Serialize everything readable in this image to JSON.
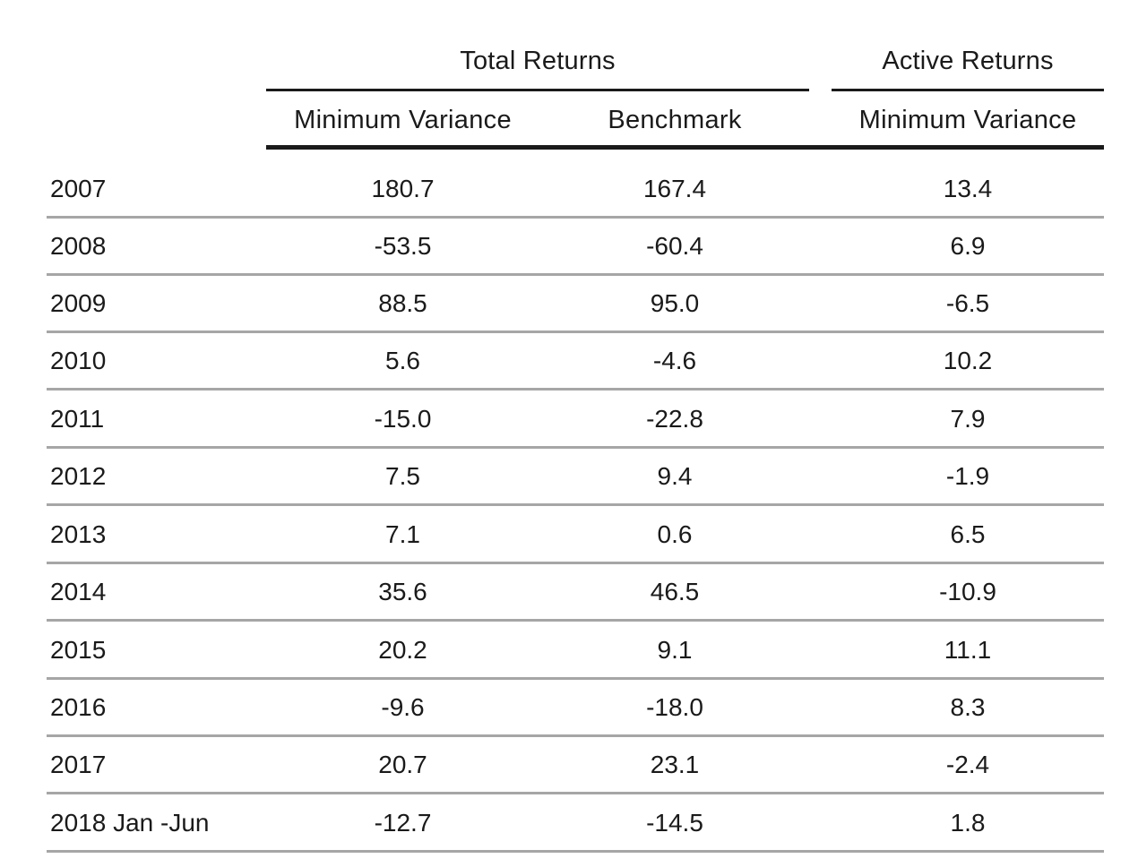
{
  "table": {
    "group_headers": {
      "total_returns": "Total Returns",
      "active_returns": "Active Returns"
    },
    "columns": [
      "Minimum Variance",
      "Benchmark",
      "Minimum Variance"
    ],
    "rows": [
      {
        "year": "2007",
        "values": [
          "180.7",
          "167.4",
          "13.4"
        ]
      },
      {
        "year": "2008",
        "values": [
          "-53.5",
          "-60.4",
          "6.9"
        ]
      },
      {
        "year": "2009",
        "values": [
          "88.5",
          "95.0",
          "-6.5"
        ]
      },
      {
        "year": "2010",
        "values": [
          "5.6",
          "-4.6",
          "10.2"
        ]
      },
      {
        "year": "2011",
        "values": [
          "-15.0",
          "-22.8",
          "7.9"
        ]
      },
      {
        "year": "2012",
        "values": [
          "7.5",
          "9.4",
          "-1.9"
        ]
      },
      {
        "year": "2013",
        "values": [
          "7.1",
          "0.6",
          "6.5"
        ]
      },
      {
        "year": "2014",
        "values": [
          "35.6",
          "46.5",
          "-10.9"
        ]
      },
      {
        "year": "2015",
        "values": [
          "20.2",
          "9.1",
          "11.1"
        ]
      },
      {
        "year": "2016",
        "values": [
          "-9.6",
          "-18.0",
          "8.3"
        ]
      },
      {
        "year": "2017",
        "values": [
          "20.7",
          "23.1",
          "-2.4"
        ]
      },
      {
        "year": "2018 Jan -Jun",
        "values": [
          "-12.7",
          "-14.5",
          "1.8"
        ]
      }
    ]
  }
}
